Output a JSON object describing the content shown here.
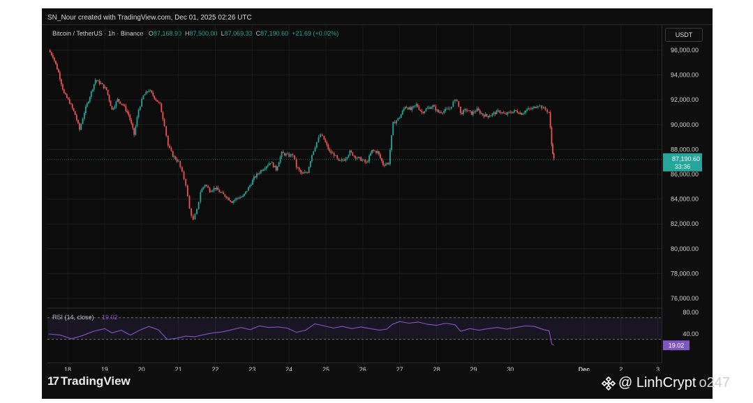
{
  "header": {
    "creator_text": "SN_Nour created with TradingView.com, Dec 01, 2025 02:26 UTC",
    "symbol": "Bitcoin / TetherUS · 1h · Binance",
    "o_label": "O",
    "o_value": "87,168.90",
    "h_label": "H",
    "h_value": "87,500.00",
    "l_label": "L",
    "l_value": "87,069.33",
    "c_label": "C",
    "c_value": "87,190.60",
    "change": "+21.69 (+0.02%)",
    "currency": "USDT"
  },
  "price_label": {
    "value": "87,190.60",
    "countdown": "33:36"
  },
  "rsi": {
    "label": "RSI (14, close)",
    "value_label": "19.02",
    "value": 19.02,
    "tick_80": "80.00",
    "tick_40": "40.00"
  },
  "branding": {
    "tradingview": "TradingView",
    "watermark_at": "@ LinhCrypt",
    "watermark_rest": "o247"
  },
  "colors": {
    "up": "#26a69a",
    "down": "#ef5350",
    "rsi": "#7e57c2",
    "background": "#0e0e0e"
  },
  "chart_data": {
    "type": "candlestick",
    "symbol": "BTC/USDT",
    "interval": "1h",
    "y_axis": {
      "ticks": [
        "96,000.00",
        "94,000.00",
        "92,000.00",
        "90,000.00",
        "88,000.00",
        "86,000.00",
        "84,000.00",
        "82,000.00",
        "80,000.00",
        "78,000.00",
        "76,000.00"
      ],
      "tick_values": [
        96000,
        94000,
        92000,
        90000,
        88000,
        86000,
        84000,
        82000,
        80000,
        78000,
        76000
      ],
      "range": [
        75000,
        97000
      ]
    },
    "x_axis": {
      "ticks": [
        "18",
        "19",
        "20",
        "21",
        "22",
        "23",
        "24",
        "25",
        "26",
        "27",
        "28",
        "29",
        "30",
        "Dec",
        "2",
        "3"
      ],
      "range_days": [
        17.45,
        3.9
      ]
    },
    "close_path": [
      [
        17.48,
        96000
      ],
      [
        17.6,
        95500
      ],
      [
        17.75,
        94200
      ],
      [
        17.9,
        92500
      ],
      [
        18.05,
        91800
      ],
      [
        18.2,
        90800
      ],
      [
        18.32,
        89600
      ],
      [
        18.45,
        91000
      ],
      [
        18.6,
        92300
      ],
      [
        18.75,
        93600
      ],
      [
        18.9,
        93300
      ],
      [
        19.05,
        92800
      ],
      [
        19.2,
        91200
      ],
      [
        19.35,
        92000
      ],
      [
        19.5,
        91600
      ],
      [
        19.65,
        90800
      ],
      [
        19.8,
        89200
      ],
      [
        19.92,
        91200
      ],
      [
        20.05,
        92300
      ],
      [
        20.2,
        92800
      ],
      [
        20.35,
        92200
      ],
      [
        20.5,
        91600
      ],
      [
        20.62,
        90000
      ],
      [
        20.72,
        88300
      ],
      [
        20.85,
        87500
      ],
      [
        21.0,
        87000
      ],
      [
        21.1,
        86100
      ],
      [
        21.2,
        85200
      ],
      [
        21.3,
        83200
      ],
      [
        21.4,
        82300
      ],
      [
        21.5,
        83100
      ],
      [
        21.6,
        84600
      ],
      [
        21.72,
        85200
      ],
      [
        21.85,
        84700
      ],
      [
        22.0,
        84900
      ],
      [
        22.15,
        84500
      ],
      [
        22.3,
        84200
      ],
      [
        22.45,
        83800
      ],
      [
        22.6,
        84100
      ],
      [
        22.75,
        84200
      ],
      [
        22.9,
        84900
      ],
      [
        23.05,
        85700
      ],
      [
        23.2,
        86200
      ],
      [
        23.35,
        86600
      ],
      [
        23.5,
        87000
      ],
      [
        23.65,
        86400
      ],
      [
        23.8,
        87700
      ],
      [
        24.0,
        87500
      ],
      [
        24.1,
        87600
      ],
      [
        24.2,
        86600
      ],
      [
        24.35,
        86000
      ],
      [
        24.5,
        86200
      ],
      [
        24.62,
        87600
      ],
      [
        24.75,
        88600
      ],
      [
        24.85,
        89200
      ],
      [
        24.95,
        88800
      ],
      [
        25.1,
        87800
      ],
      [
        25.22,
        87600
      ],
      [
        25.35,
        87000
      ],
      [
        25.5,
        87200
      ],
      [
        25.65,
        87800
      ],
      [
        25.8,
        87400
      ],
      [
        25.95,
        87200
      ],
      [
        26.1,
        86900
      ],
      [
        26.25,
        87900
      ],
      [
        26.4,
        87800
      ],
      [
        26.55,
        86800
      ],
      [
        26.7,
        86900
      ],
      [
        26.82,
        90100
      ],
      [
        27.0,
        90600
      ],
      [
        27.15,
        91500
      ],
      [
        27.3,
        91200
      ],
      [
        27.45,
        91600
      ],
      [
        27.6,
        91000
      ],
      [
        27.75,
        91300
      ],
      [
        27.9,
        91500
      ],
      [
        28.05,
        91000
      ],
      [
        28.2,
        91100
      ],
      [
        28.35,
        91300
      ],
      [
        28.45,
        91800
      ],
      [
        28.55,
        92000
      ],
      [
        28.65,
        90900
      ],
      [
        28.8,
        91200
      ],
      [
        28.95,
        90900
      ],
      [
        29.1,
        91200
      ],
      [
        29.25,
        90800
      ],
      [
        29.4,
        90700
      ],
      [
        29.55,
        90900
      ],
      [
        29.7,
        91100
      ],
      [
        29.85,
        90800
      ],
      [
        30.0,
        91000
      ],
      [
        30.15,
        91100
      ],
      [
        30.3,
        90900
      ],
      [
        30.45,
        91200
      ],
      [
        30.6,
        91300
      ],
      [
        30.75,
        91600
      ],
      [
        30.85,
        91400
      ],
      [
        30.95,
        91200
      ],
      [
        31.05,
        91000
      ],
      [
        31.12,
        88400
      ],
      [
        31.18,
        87190
      ]
    ],
    "last_price": 87190.6,
    "rsi_series": {
      "ylim": [
        0,
        100
      ],
      "bands": [
        30,
        70
      ],
      "values": [
        [
          17.48,
          40
        ],
        [
          17.8,
          38
        ],
        [
          18.1,
          31
        ],
        [
          18.4,
          37
        ],
        [
          18.7,
          45
        ],
        [
          19.0,
          50
        ],
        [
          19.2,
          42
        ],
        [
          19.45,
          47
        ],
        [
          19.7,
          38
        ],
        [
          19.95,
          47
        ],
        [
          20.2,
          54
        ],
        [
          20.45,
          48
        ],
        [
          20.7,
          30
        ],
        [
          20.95,
          32
        ],
        [
          21.2,
          36
        ],
        [
          21.45,
          35
        ],
        [
          21.7,
          39
        ],
        [
          21.95,
          42
        ],
        [
          22.2,
          44
        ],
        [
          22.45,
          48
        ],
        [
          22.7,
          52
        ],
        [
          22.95,
          48
        ],
        [
          23.2,
          55
        ],
        [
          23.45,
          52
        ],
        [
          23.7,
          53
        ],
        [
          23.95,
          51
        ],
        [
          24.2,
          43
        ],
        [
          24.45,
          47
        ],
        [
          24.7,
          59
        ],
        [
          24.95,
          55
        ],
        [
          25.2,
          51
        ],
        [
          25.45,
          54
        ],
        [
          25.7,
          50
        ],
        [
          25.95,
          53
        ],
        [
          26.2,
          50
        ],
        [
          26.45,
          47
        ],
        [
          26.65,
          49
        ],
        [
          26.8,
          58
        ],
        [
          27.0,
          63
        ],
        [
          27.25,
          60
        ],
        [
          27.5,
          62
        ],
        [
          27.75,
          58
        ],
        [
          28.0,
          56
        ],
        [
          28.25,
          60
        ],
        [
          28.5,
          57
        ],
        [
          28.65,
          45
        ],
        [
          28.9,
          50
        ],
        [
          29.15,
          47
        ],
        [
          29.4,
          50
        ],
        [
          29.65,
          52
        ],
        [
          29.9,
          49
        ],
        [
          30.15,
          52
        ],
        [
          30.4,
          55
        ],
        [
          30.65,
          54
        ],
        [
          30.9,
          48
        ],
        [
          31.05,
          46
        ],
        [
          31.12,
          22
        ],
        [
          31.18,
          19.02
        ]
      ]
    }
  }
}
